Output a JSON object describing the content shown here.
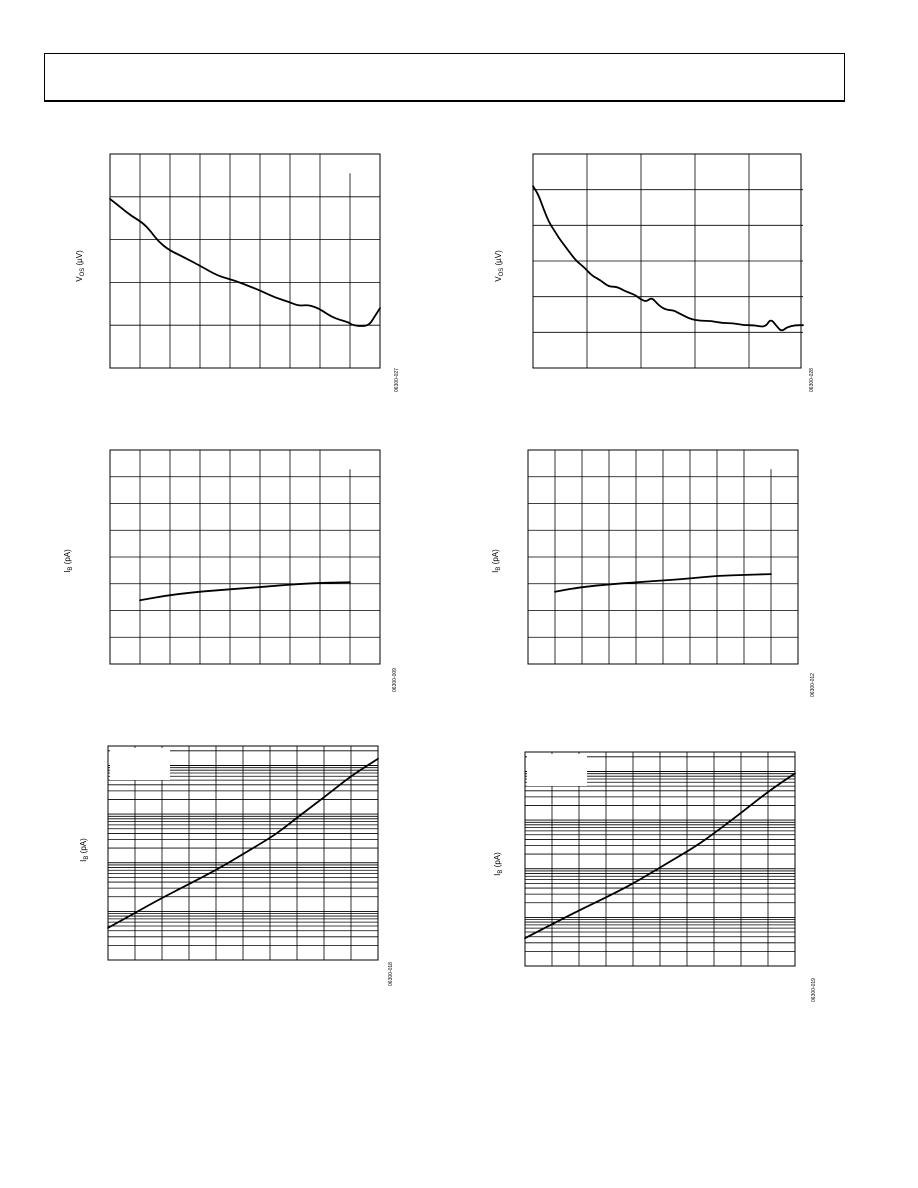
{
  "page": {
    "header": ""
  },
  "chart_data": [
    {
      "id": "tl",
      "type": "line",
      "scale": "linear",
      "ylabel_main": "V",
      "ylabel_sub": "OS",
      "ylabel_unit": "(µV)",
      "figure_code": "06300-027",
      "vdiv": 9,
      "hdiv": 5,
      "partial_vline": 8,
      "xlim": [
        0,
        1
      ],
      "ylim": [
        0,
        1
      ],
      "series": [
        {
          "x": [
            0,
            0.04,
            0.08,
            0.12,
            0.15,
            0.18,
            0.22,
            0.27,
            0.33,
            0.4,
            0.46,
            0.52,
            0.56,
            0.61,
            0.66,
            0.7,
            0.73,
            0.76,
            0.79,
            0.82,
            0.85,
            0.88,
            0.9,
            0.93,
            0.96,
            0.98,
            1.0
          ],
          "y": [
            0.79,
            0.75,
            0.71,
            0.68,
            0.64,
            0.59,
            0.55,
            0.52,
            0.48,
            0.43,
            0.41,
            0.38,
            0.36,
            0.33,
            0.31,
            0.29,
            0.295,
            0.285,
            0.265,
            0.24,
            0.225,
            0.215,
            0.2,
            0.195,
            0.2,
            0.24,
            0.28
          ]
        }
      ]
    },
    {
      "id": "tr",
      "type": "line",
      "scale": "linear",
      "ylabel_main": "V",
      "ylabel_sub": "OS",
      "ylabel_unit": "(µV)",
      "figure_code": "06300-028",
      "vdiv": 5,
      "hdiv": 6,
      "partial_vline": null,
      "xlim": [
        0,
        1
      ],
      "ylim": [
        0,
        1
      ],
      "series": [
        {
          "x": [
            0,
            0.02,
            0.04,
            0.06,
            0.08,
            0.1,
            0.13,
            0.16,
            0.19,
            0.22,
            0.25,
            0.28,
            0.31,
            0.34,
            0.36,
            0.38,
            0.4,
            0.42,
            0.44,
            0.46,
            0.48,
            0.5,
            0.52,
            0.55,
            0.58,
            0.62,
            0.66,
            0.7,
            0.74,
            0.78,
            0.82,
            0.86,
            0.88,
            0.9,
            0.92,
            0.94,
            0.97,
            1.0
          ],
          "y": [
            0.85,
            0.81,
            0.74,
            0.68,
            0.64,
            0.6,
            0.55,
            0.5,
            0.47,
            0.43,
            0.41,
            0.38,
            0.38,
            0.36,
            0.35,
            0.34,
            0.32,
            0.31,
            0.33,
            0.3,
            0.28,
            0.27,
            0.27,
            0.25,
            0.23,
            0.22,
            0.22,
            0.21,
            0.21,
            0.2,
            0.2,
            0.19,
            0.23,
            0.2,
            0.17,
            0.19,
            0.2,
            0.2
          ]
        }
      ]
    },
    {
      "id": "ml",
      "type": "line",
      "scale": "linear",
      "ylabel_main": "I",
      "ylabel_sub": "B",
      "ylabel_unit": "(pA)",
      "figure_code": "06300-009",
      "vdiv": 9,
      "hdiv": 8,
      "partial_vline": 8,
      "xlim": [
        0,
        1
      ],
      "ylim": [
        0,
        1
      ],
      "series": [
        {
          "x": [
            0.111,
            0.2,
            0.3,
            0.4,
            0.5,
            0.6,
            0.7,
            0.8,
            0.889
          ],
          "y": [
            0.298,
            0.318,
            0.334,
            0.345,
            0.354,
            0.364,
            0.374,
            0.38,
            0.382
          ]
        }
      ]
    },
    {
      "id": "mr",
      "type": "line",
      "scale": "linear",
      "ylabel_main": "I",
      "ylabel_sub": "B",
      "ylabel_unit": "(pA)",
      "figure_code": "06300-012",
      "vdiv": 10,
      "hdiv": 8,
      "partial_vline": 9,
      "xlim": [
        0,
        1
      ],
      "ylim": [
        0,
        1
      ],
      "series": [
        {
          "x": [
            0.1,
            0.2,
            0.3,
            0.4,
            0.5,
            0.6,
            0.7,
            0.8,
            0.9
          ],
          "y": [
            0.338,
            0.36,
            0.372,
            0.382,
            0.39,
            0.4,
            0.412,
            0.416,
            0.42
          ]
        }
      ]
    },
    {
      "id": "bl",
      "type": "line",
      "scale": "log",
      "ylabel_main": "I",
      "ylabel_sub": "B",
      "ylabel_unit": "(pA)",
      "figure_code": "06300-018",
      "vdiv": 10,
      "decades": 4.4,
      "legend_box": true,
      "xlim": [
        0,
        1
      ],
      "ylim": [
        0,
        1
      ],
      "series": [
        {
          "x": [
            0,
            0.1,
            0.2,
            0.3,
            0.4,
            0.5,
            0.6,
            0.65,
            0.7,
            0.8,
            0.9,
            1.0
          ],
          "y": [
            0.15,
            0.22,
            0.29,
            0.355,
            0.42,
            0.495,
            0.57,
            0.615,
            0.665,
            0.76,
            0.86,
            0.94
          ]
        }
      ]
    },
    {
      "id": "br",
      "type": "line",
      "scale": "log",
      "ylabel_main": "I",
      "ylabel_sub": "B",
      "ylabel_unit": "(pA)",
      "figure_code": "06300-019",
      "vdiv": 10,
      "decades": 4.4,
      "legend_box": true,
      "xlim": [
        0,
        1
      ],
      "ylim": [
        0,
        1
      ],
      "series": [
        {
          "x": [
            0,
            0.1,
            0.2,
            0.3,
            0.4,
            0.5,
            0.6,
            0.65,
            0.7,
            0.8,
            0.9,
            1.0
          ],
          "y": [
            0.13,
            0.195,
            0.26,
            0.32,
            0.385,
            0.46,
            0.535,
            0.575,
            0.62,
            0.715,
            0.815,
            0.9
          ]
        }
      ]
    }
  ]
}
